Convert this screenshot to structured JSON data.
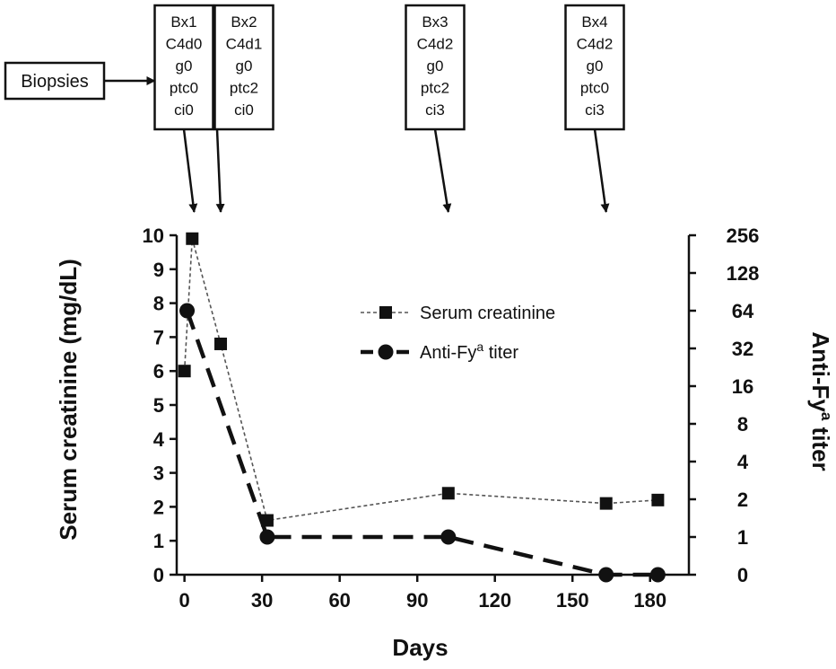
{
  "chart_data": {
    "type": "line",
    "xlabel": "Days",
    "ylabel_left": "Serum creatinine (mg/dL)",
    "ylabel_right_main": "Anti-Fy",
    "ylabel_right_sup": "a",
    "ylabel_right_tail": " titer",
    "xlim": [
      -3,
      195
    ],
    "xticks": [
      0,
      30,
      60,
      90,
      120,
      150,
      180
    ],
    "ylim_left": [
      0,
      10
    ],
    "yticks_left": [
      0,
      1,
      2,
      3,
      4,
      5,
      6,
      7,
      8,
      9,
      10
    ],
    "yticks_right": [
      "0",
      "1",
      "2",
      "4",
      "8",
      "16",
      "32",
      "64",
      "128",
      "256"
    ],
    "right_axis_scale": "log2 (0 mapped to bottom)",
    "legend": {
      "position": "center-right",
      "entries": [
        {
          "label": "Serum creatinine",
          "sup": "",
          "tail": "",
          "marker": "square",
          "style": "thin-dashed"
        },
        {
          "label": "Anti-Fy",
          "sup": "a",
          "tail": " titer",
          "marker": "circle",
          "style": "thick-dashed"
        }
      ]
    },
    "series": [
      {
        "name": "Serum creatinine",
        "axis": "left",
        "x": [
          0,
          3,
          14,
          32,
          102,
          163,
          183
        ],
        "y": [
          6.0,
          9.9,
          6.8,
          1.6,
          2.4,
          2.1,
          2.2
        ]
      },
      {
        "name": "Anti-Fyᵃ titer",
        "axis": "right",
        "x": [
          1,
          32,
          102,
          163,
          183
        ],
        "y": [
          "64",
          "1",
          "1",
          "0",
          "0"
        ]
      }
    ],
    "annotations": {
      "biopsies_label": "Biopsies",
      "biopsies": [
        {
          "day": 2,
          "lines": [
            "Bx1",
            "C4d0",
            "g0",
            "ptc0",
            "ci0"
          ]
        },
        {
          "day": 14,
          "lines": [
            "Bx2",
            "C4d1",
            "g0",
            "ptc2",
            "ci0"
          ]
        },
        {
          "day": 102,
          "lines": [
            "Bx3",
            "C4d2",
            "g0",
            "ptc2",
            "ci3"
          ]
        },
        {
          "day": 163,
          "lines": [
            "Bx4",
            "C4d2",
            "g0",
            "ptc0",
            "ci3"
          ]
        }
      ]
    }
  }
}
